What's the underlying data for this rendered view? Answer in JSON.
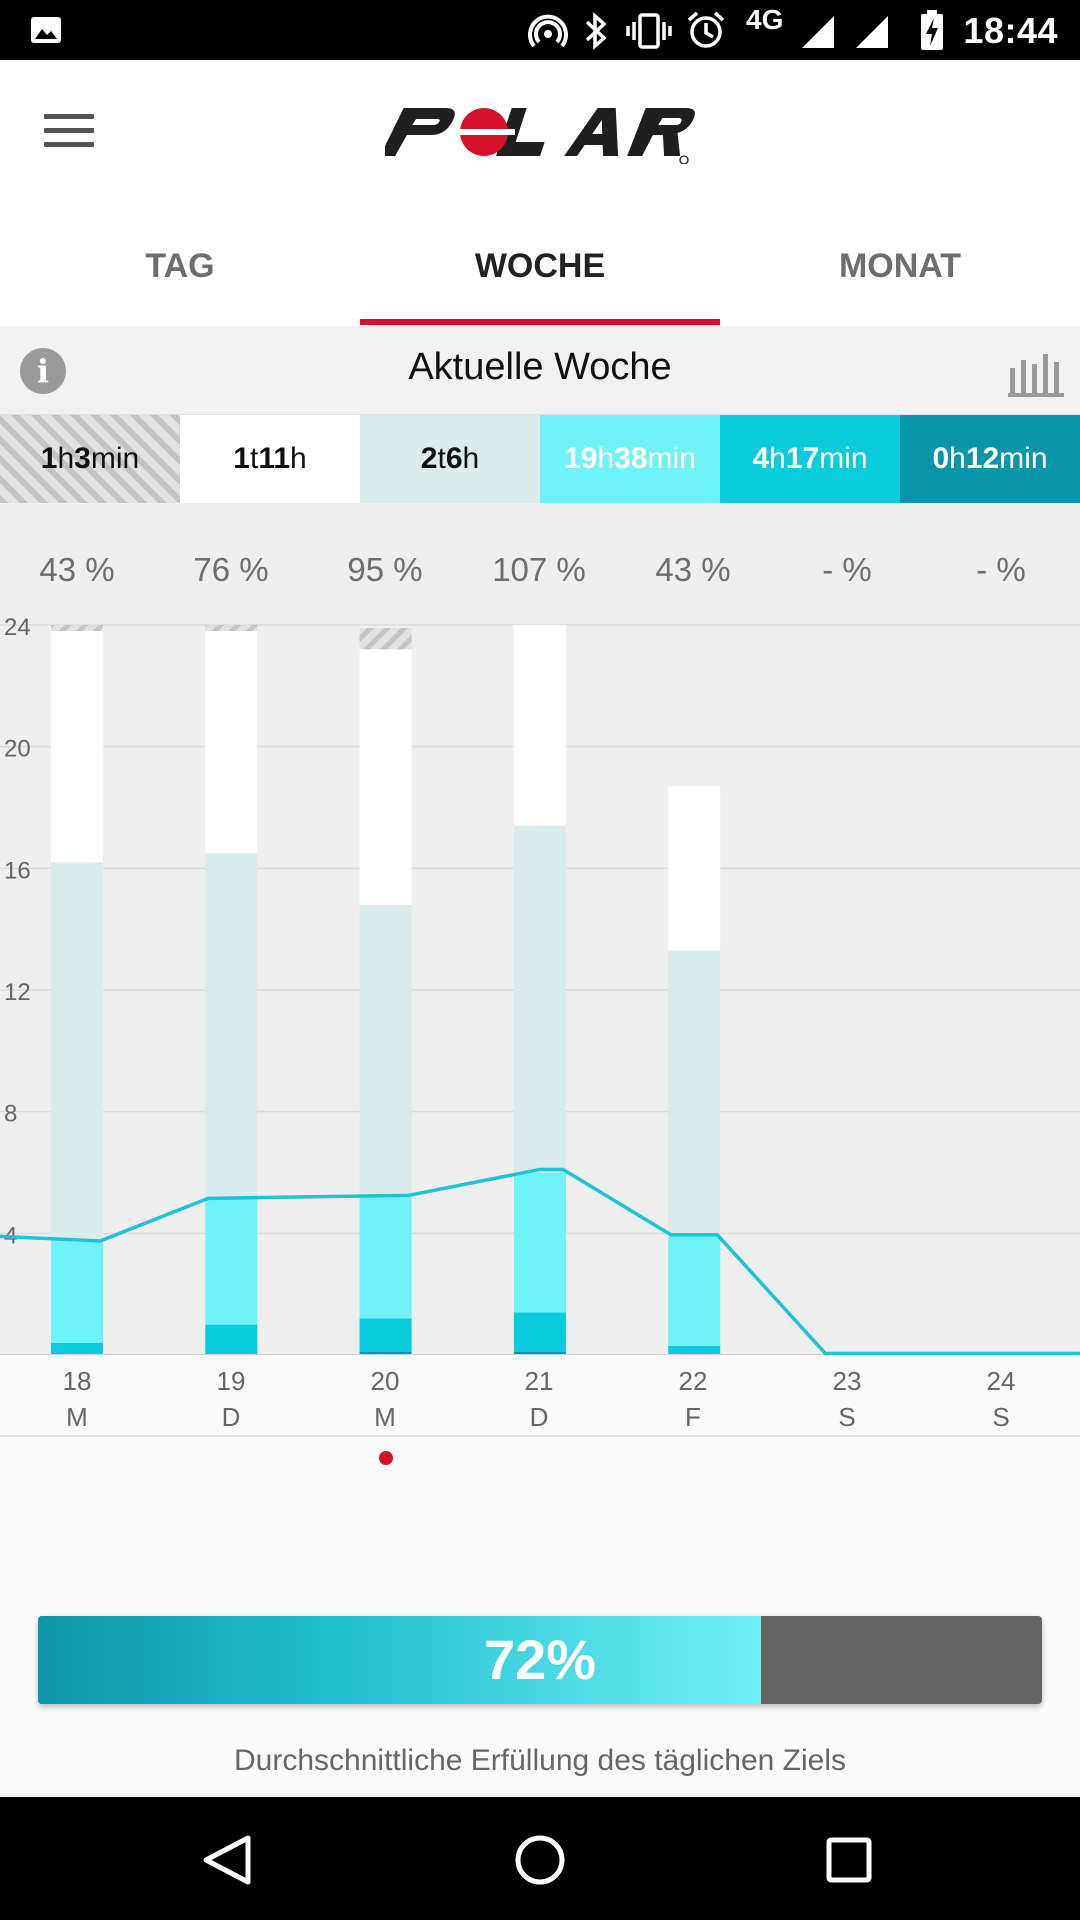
{
  "status_bar": {
    "time": "18:44",
    "network": "4G"
  },
  "header": {
    "title": "Aktuelle Woche"
  },
  "tabs": [
    {
      "label": "TAG",
      "active": false
    },
    {
      "label": "WOCHE",
      "active": true
    },
    {
      "label": "MONAT",
      "active": false
    }
  ],
  "categories": [
    {
      "parts": [
        [
          "1",
          "b"
        ],
        [
          "h",
          ""
        ],
        [
          "3",
          "b"
        ],
        [
          "min",
          ""
        ]
      ],
      "bg": "#d8d8d8",
      "fg": "#111111",
      "pattern": "hatch"
    },
    {
      "parts": [
        [
          "1",
          "b"
        ],
        [
          "t",
          ""
        ],
        [
          "11",
          "b"
        ],
        [
          "h",
          ""
        ]
      ],
      "bg": "#ffffff",
      "fg": "#111111"
    },
    {
      "parts": [
        [
          "2",
          "b"
        ],
        [
          "t",
          ""
        ],
        [
          "6",
          "b"
        ],
        [
          "h",
          ""
        ]
      ],
      "bg": "#dcebeb",
      "fg": "#111111"
    },
    {
      "parts": [
        [
          "19",
          "b"
        ],
        [
          "h",
          ""
        ],
        [
          "38",
          "b"
        ],
        [
          "min",
          ""
        ]
      ],
      "bg": "#6ff2f8",
      "fg": "#ffffff"
    },
    {
      "parts": [
        [
          "4",
          "b"
        ],
        [
          "h",
          ""
        ],
        [
          "17",
          "b"
        ],
        [
          "min",
          ""
        ]
      ],
      "bg": "#0bcbdc",
      "fg": "#ffffff"
    },
    {
      "parts": [
        [
          "0",
          "b"
        ],
        [
          "h",
          ""
        ],
        [
          "12",
          "b"
        ],
        [
          "min",
          ""
        ]
      ],
      "bg": "#0a96a8",
      "fg": "#ffffff"
    }
  ],
  "chart_data": {
    "type": "bar",
    "stacked": true,
    "ylim": [
      0,
      24
    ],
    "yticks": [
      4,
      8,
      12,
      16,
      20,
      24
    ],
    "percentages": [
      "43 %",
      "76 %",
      "95 %",
      "107 %",
      "43 %",
      "- %",
      "- %"
    ],
    "days": [
      {
        "date": "18",
        "weekday": "M"
      },
      {
        "date": "19",
        "weekday": "D"
      },
      {
        "date": "20",
        "weekday": "M"
      },
      {
        "date": "21",
        "weekday": "D"
      },
      {
        "date": "22",
        "weekday": "F"
      },
      {
        "date": "23",
        "weekday": "S"
      },
      {
        "date": "24",
        "weekday": "S"
      }
    ],
    "segment_colors": {
      "dark": "#0a96a8",
      "mid": "#0bcbdc",
      "light": "#6ff2f8",
      "sitting": "#dcebeb",
      "rest": "#ffffff",
      "unknown": "#d2d2d2"
    },
    "bars": [
      [
        [
          "mid",
          0.4
        ],
        [
          "light",
          3.4
        ],
        [
          "sitting",
          12.4
        ],
        [
          "rest",
          7.6
        ],
        [
          "unknown",
          0.2
        ]
      ],
      [
        [
          "mid",
          1.0
        ],
        [
          "light",
          4.2
        ],
        [
          "sitting",
          11.3
        ],
        [
          "rest",
          7.3
        ],
        [
          "unknown",
          0.2
        ]
      ],
      [
        [
          "dark",
          0.1
        ],
        [
          "mid",
          1.1
        ],
        [
          "light",
          4.0
        ],
        [
          "sitting",
          9.6
        ],
        [
          "rest",
          8.4
        ],
        [
          "unknown",
          0.7
        ]
      ],
      [
        [
          "dark",
          0.1
        ],
        [
          "mid",
          1.3
        ],
        [
          "light",
          4.6
        ],
        [
          "sitting",
          11.4
        ],
        [
          "rest",
          6.6
        ]
      ],
      [
        [
          "mid",
          0.3
        ],
        [
          "light",
          3.6
        ],
        [
          "sitting",
          9.4
        ],
        [
          "rest",
          5.4
        ]
      ],
      [],
      []
    ],
    "line": [
      {
        "x": -0.5,
        "y": 3.9
      },
      {
        "x": 0.15,
        "y": 3.75
      },
      {
        "x": 0.85,
        "y": 5.15
      },
      {
        "x": 2.15,
        "y": 5.25
      },
      {
        "x": 3.0,
        "y": 6.1
      },
      {
        "x": 3.15,
        "y": 6.1
      },
      {
        "x": 3.85,
        "y": 3.95
      },
      {
        "x": 4.15,
        "y": 3.95
      },
      {
        "x": 4.85,
        "y": 0.05
      },
      {
        "x": 6.5,
        "y": 0.05
      }
    ],
    "line_color": "#1fc4d2"
  },
  "selected_day_index": 2,
  "progress": {
    "label": "72%",
    "value": 0.72,
    "caption": "Durchschnittliche Erfüllung des täglichen Ziels"
  },
  "colors": {
    "accent": "#d3132e"
  }
}
